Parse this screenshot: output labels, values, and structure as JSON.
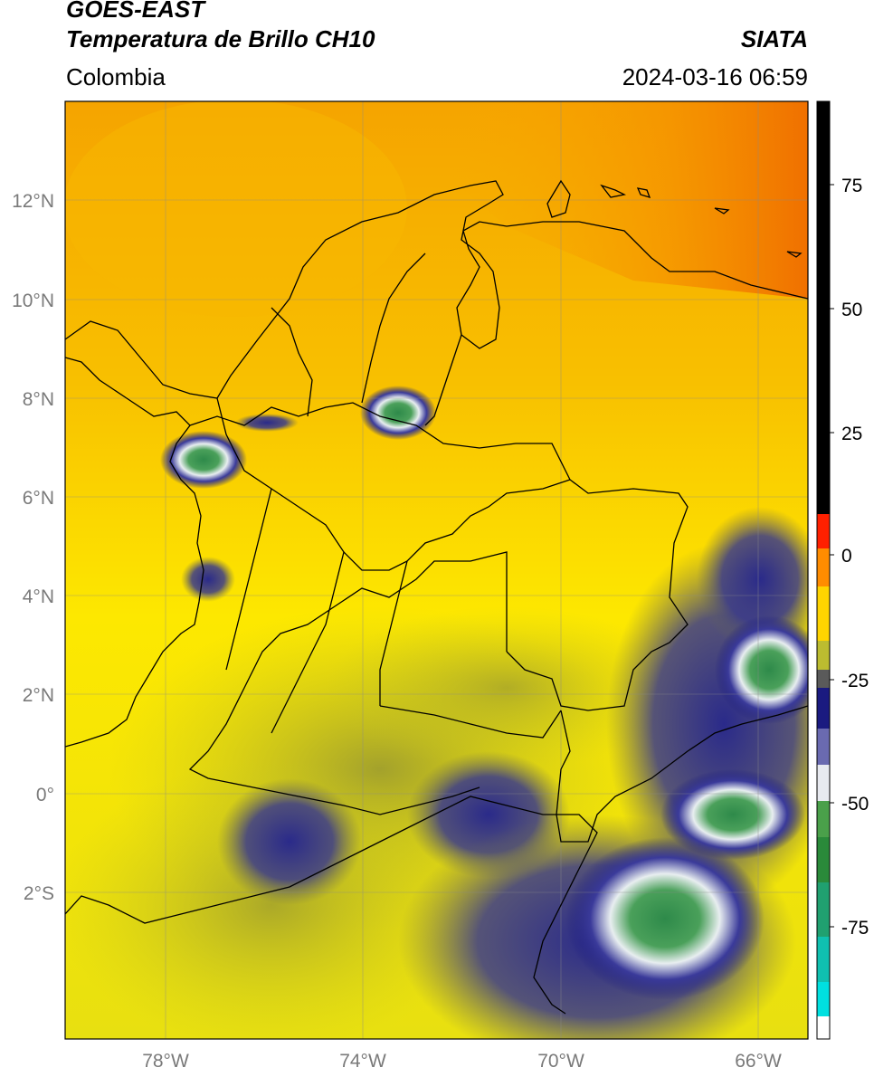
{
  "header": {
    "satellite": "GOES-EAST",
    "product": "Temperatura de Brillo CH10",
    "region": "Colombia",
    "source": "SIATA",
    "datetime": "2024-03-16 06:59"
  },
  "map": {
    "lat_ticks": [
      "12°N",
      "10°N",
      "8°N",
      "6°N",
      "4°N",
      "2°N",
      "0°",
      "2°S"
    ],
    "lon_ticks": [
      "78°W",
      "74°W",
      "70°W",
      "66°W"
    ],
    "lon_range": [
      -80,
      -65
    ],
    "lat_range": [
      -5,
      14
    ],
    "grid": true
  },
  "colorbar": {
    "ticks": [
      "75",
      "50",
      "25",
      "0",
      "-25",
      "-50",
      "-75"
    ],
    "colors": [
      "#ffffff",
      "#00e6e6",
      "#1e9c6e",
      "#3c8c3c",
      "#ffffff",
      "#1a1a7a",
      "#cccc22",
      "#ffff00",
      "#ff9900",
      "#ff2200",
      "#000000"
    ]
  }
}
